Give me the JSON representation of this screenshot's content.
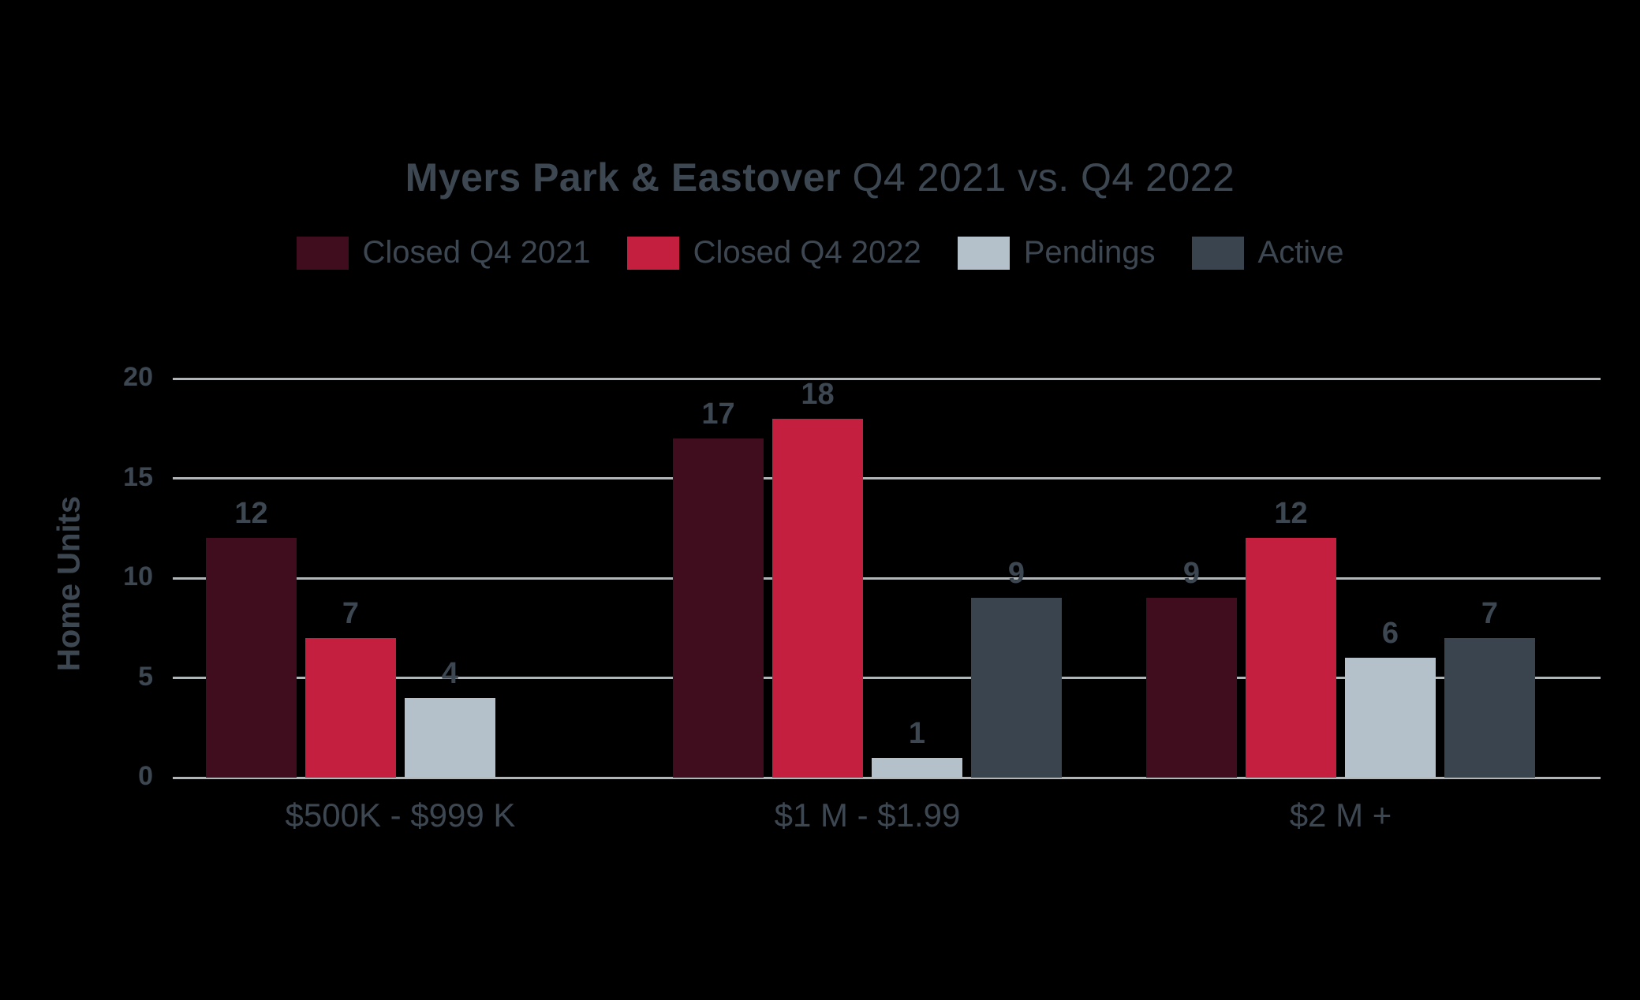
{
  "chart": {
    "title_bold": "Myers Park & Eastover",
    "title_regular": "Q4 2021 vs. Q4 2022"
  },
  "chart_data": {
    "type": "bar",
    "title": "Myers Park & Eastover Q4 2021 vs. Q4 2022",
    "xlabel": "",
    "ylabel": "Home Units",
    "ylim": [
      0,
      20
    ],
    "yticks": [
      0,
      5,
      10,
      15,
      20
    ],
    "grid": true,
    "legend_position": "top",
    "categories": [
      "$500K - $999 K",
      "$1 M - $1.99",
      "$2 M +"
    ],
    "series": [
      {
        "name": "Closed Q4 2021",
        "color": "#3f0d1d",
        "values": [
          12,
          17,
          9
        ]
      },
      {
        "name": "Closed Q4 2022",
        "color": "#c41f3f",
        "values": [
          7,
          18,
          12
        ]
      },
      {
        "name": "Pendings",
        "color": "#b5c1ca",
        "values": [
          4,
          1,
          6
        ]
      },
      {
        "name": "Active",
        "color": "#3a444e",
        "values": [
          null,
          9,
          7
        ]
      }
    ]
  },
  "colors": {
    "background": "#000000",
    "text": "#3d4751",
    "gridline": "#b0b5b8"
  }
}
